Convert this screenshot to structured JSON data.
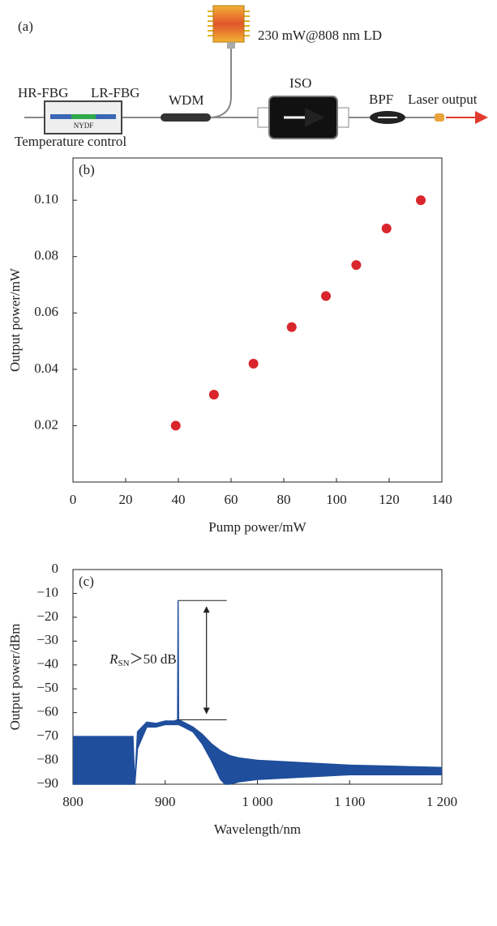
{
  "diagram": {
    "label": "(a)",
    "ld": "230 mW@808 nm LD",
    "hr_fbg": "HR-FBG",
    "lr_fbg": "LR-FBG",
    "fiber": "NYDF",
    "temperature": "Temperature control",
    "wdm": "WDM",
    "iso": "ISO",
    "bpf": "BPF",
    "output": "Laser output"
  },
  "chart_data": [
    {
      "type": "scatter",
      "label": "(b)",
      "x_label": "Pump power/mW",
      "y_label": "Output power/mW",
      "x": [
        39,
        53.5,
        68.5,
        83,
        96,
        107.5,
        119,
        132
      ],
      "values": [
        0.02,
        0.031,
        0.042,
        0.055,
        0.066,
        0.077,
        0.09,
        0.1
      ],
      "color": "#d9262c",
      "xlim": [
        0,
        140
      ],
      "xticks": [
        0,
        20,
        40,
        60,
        80,
        100,
        120,
        140
      ],
      "ylim": [
        0,
        0.115
      ],
      "yticks": [
        0.02,
        0.04,
        0.06,
        0.08,
        {
          "value": 0.1,
          "label": "0.10"
        }
      ]
    },
    {
      "type": "line",
      "label": "(c)",
      "x_label": "Wavelength/nm",
      "y_label": "Output power/dBm",
      "annotation": {
        "symbol": "R",
        "subscript": "SN",
        "text": "＞50 dB"
      },
      "x": [
        800,
        820,
        840,
        860,
        865,
        867,
        870,
        880,
        890,
        900,
        910,
        913.5,
        914,
        914.5,
        920,
        930,
        940,
        950,
        960,
        965,
        970,
        980,
        1000,
        1050,
        1100,
        1150,
        1200
      ],
      "series": [
        {
          "color": "#1f4e9c",
          "values": [
            -70,
            -70,
            -70,
            -70,
            -70,
            -90,
            -68,
            -64,
            -64.5,
            -63.5,
            -63.5,
            -63,
            -13,
            -63,
            -64,
            -66,
            -69,
            -73,
            -76,
            -77,
            -78,
            -79,
            -80,
            -81,
            -82,
            -82.5,
            -83
          ]
        },
        {
          "color": "#1f4e9c",
          "values": [
            -90,
            -90,
            -90,
            -90,
            -90,
            -90,
            -75,
            -66,
            -66,
            -65,
            -65,
            -65,
            -63,
            -65,
            -66,
            -68,
            -73,
            -80,
            -88,
            -90,
            -90,
            -89,
            -88,
            -87,
            -86,
            -86,
            -86
          ]
        }
      ],
      "xlim": [
        800,
        1200
      ],
      "xticks": [
        800,
        900,
        {
          "value": 1000,
          "label": "1 000"
        },
        {
          "value": 1100,
          "label": "1 100"
        },
        {
          "value": 1200,
          "label": "1 200"
        }
      ],
      "ylim": [
        -90,
        0
      ],
      "yticks": [
        0,
        {
          "value": -10,
          "label": "−10"
        },
        {
          "value": -20,
          "label": "−20"
        },
        {
          "value": -30,
          "label": "−30"
        },
        {
          "value": -40,
          "label": "−40"
        },
        {
          "value": -50,
          "label": "−50"
        },
        {
          "value": -60,
          "label": "−60"
        },
        {
          "value": -70,
          "label": "−70"
        },
        {
          "value": -80,
          "label": "−80"
        },
        {
          "value": -90,
          "label": "−90"
        }
      ]
    }
  ]
}
